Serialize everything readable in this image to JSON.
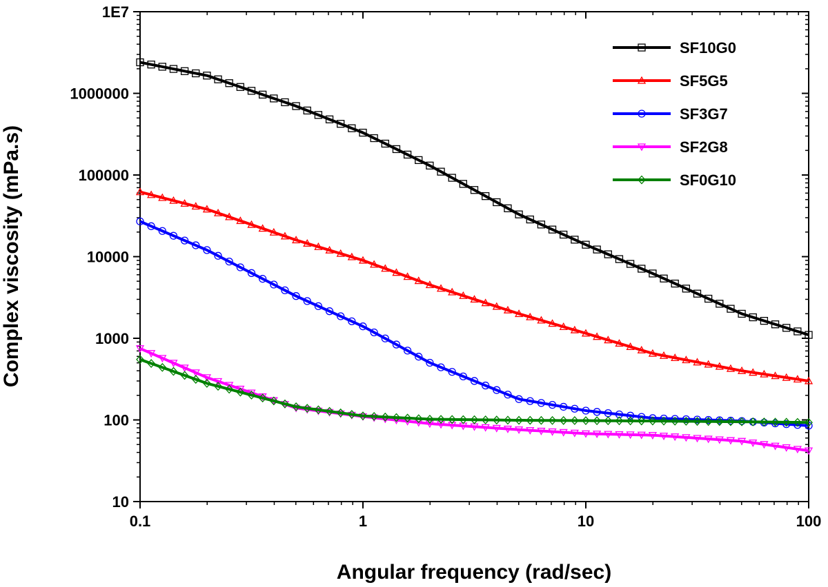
{
  "chart_data": {
    "type": "line",
    "title": "",
    "xlabel": "Angular frequency (rad/sec)",
    "ylabel": "Complex viscosity (mPa.s)",
    "xscale": "log",
    "yscale": "log",
    "xlim": [
      0.1,
      100
    ],
    "ylim": [
      10,
      10000000
    ],
    "x_ticks": [
      0.1,
      1,
      10,
      100
    ],
    "x_tick_labels": [
      "0.1",
      "1",
      "10",
      "100"
    ],
    "y_ticks": [
      10,
      100,
      1000,
      10000,
      100000,
      1000000,
      10000000
    ],
    "y_tick_labels": [
      "10",
      "100",
      "1000",
      "10000",
      "100000",
      "1000000",
      "1E7"
    ],
    "grid": false,
    "legend_position": "top-right",
    "x": [
      0.1,
      0.2,
      0.5,
      1,
      2,
      5,
      10,
      20,
      50,
      100
    ],
    "series": [
      {
        "name": "SF10G0",
        "color": "#000000",
        "marker": "square",
        "values": [
          2400000,
          1650000,
          700000,
          330000,
          130000,
          33000,
          14000,
          6200,
          2000,
          1100
        ]
      },
      {
        "name": "SF5G5",
        "color": "#ff0000",
        "marker": "triangle-up",
        "values": [
          62000,
          38000,
          16000,
          9000,
          4500,
          2000,
          1150,
          650,
          400,
          300
        ]
      },
      {
        "name": "SF3G7",
        "color": "#0000ff",
        "marker": "circle",
        "values": [
          27000,
          12000,
          3300,
          1400,
          500,
          180,
          130,
          105,
          97,
          85
        ]
      },
      {
        "name": "SF2G8",
        "color": "#ff00ff",
        "marker": "triangle-down",
        "values": [
          750,
          330,
          140,
          110,
          90,
          76,
          68,
          65,
          55,
          42
        ]
      },
      {
        "name": "SF0G10",
        "color": "#008000",
        "marker": "diamond",
        "values": [
          550,
          280,
          145,
          112,
          102,
          99,
          98,
          97,
          95,
          93
        ]
      }
    ]
  }
}
